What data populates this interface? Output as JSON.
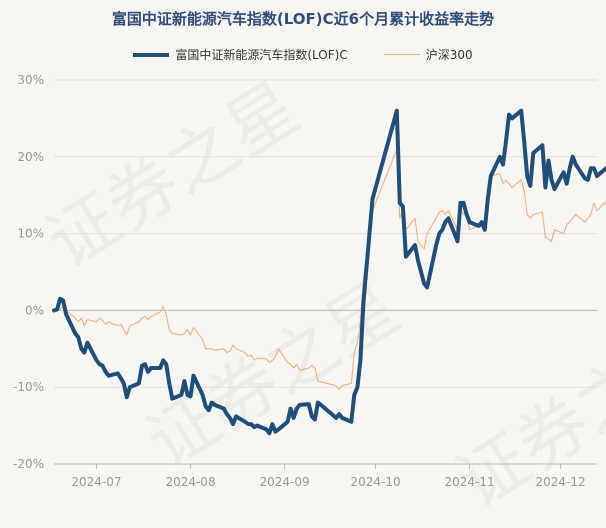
{
  "watermark": "证券之星",
  "chart_data": {
    "type": "line",
    "title": "富国中证新能源汽车指数(LOF)C近6个月累计收益率走势",
    "ylim": [
      -20,
      30
    ],
    "yticks": [
      30,
      20,
      10,
      0,
      -10,
      -20
    ],
    "ytick_labels": [
      "30%",
      "20%",
      "10%",
      "0%",
      "-10%",
      "-20%"
    ],
    "xlim": [
      "2024-06-17",
      "2024-12-13"
    ],
    "xticks": [
      "2024-07-01",
      "2024-08-01",
      "2024-09-01",
      "2024-10-01",
      "2024-11-01",
      "2024-12-01"
    ],
    "xtick_labels": [
      "2024-07",
      "2024-08",
      "2024-09",
      "2024-10",
      "2024-11",
      "2024-12"
    ],
    "grid": true,
    "legend_position": "top",
    "series": [
      {
        "name": "富国中证新能源汽车指数(LOF)C",
        "color": "#1f4e79",
        "points": [
          [
            "2024-06-17",
            0.0
          ],
          [
            "2024-06-18",
            0.1
          ],
          [
            "2024-06-19",
            1.5
          ],
          [
            "2024-06-20",
            1.3
          ],
          [
            "2024-06-21",
            -0.5
          ],
          [
            "2024-06-24",
            -3.0
          ],
          [
            "2024-06-25",
            -3.5
          ],
          [
            "2024-06-26",
            -5.0
          ],
          [
            "2024-06-27",
            -5.5
          ],
          [
            "2024-06-28",
            -4.2
          ],
          [
            "2024-07-01",
            -6.5
          ],
          [
            "2024-07-02",
            -7.0
          ],
          [
            "2024-07-03",
            -7.2
          ],
          [
            "2024-07-04",
            -8.0
          ],
          [
            "2024-07-05",
            -8.5
          ],
          [
            "2024-07-08",
            -8.2
          ],
          [
            "2024-07-09",
            -8.8
          ],
          [
            "2024-07-10",
            -9.5
          ],
          [
            "2024-07-11",
            -11.3
          ],
          [
            "2024-07-12",
            -10.0
          ],
          [
            "2024-07-15",
            -9.5
          ],
          [
            "2024-07-16",
            -7.2
          ],
          [
            "2024-07-17",
            -7.0
          ],
          [
            "2024-07-18",
            -8.0
          ],
          [
            "2024-07-19",
            -7.5
          ],
          [
            "2024-07-22",
            -7.5
          ],
          [
            "2024-07-23",
            -6.5
          ],
          [
            "2024-07-24",
            -7.0
          ],
          [
            "2024-07-25",
            -9.5
          ],
          [
            "2024-07-26",
            -11.5
          ],
          [
            "2024-07-29",
            -11.0
          ],
          [
            "2024-07-30",
            -9.2
          ],
          [
            "2024-07-31",
            -11.0
          ],
          [
            "2024-08-01",
            -11.2
          ],
          [
            "2024-08-02",
            -8.5
          ],
          [
            "2024-08-05",
            -11.0
          ],
          [
            "2024-08-06",
            -12.5
          ],
          [
            "2024-08-07",
            -13.0
          ],
          [
            "2024-08-08",
            -12.0
          ],
          [
            "2024-08-09",
            -12.3
          ],
          [
            "2024-08-12",
            -12.8
          ],
          [
            "2024-08-13",
            -13.5
          ],
          [
            "2024-08-14",
            -14.0
          ],
          [
            "2024-08-15",
            -14.8
          ],
          [
            "2024-08-16",
            -13.8
          ],
          [
            "2024-08-19",
            -14.5
          ],
          [
            "2024-08-20",
            -14.8
          ],
          [
            "2024-08-21",
            -14.8
          ],
          [
            "2024-08-22",
            -15.2
          ],
          [
            "2024-08-23",
            -15.0
          ],
          [
            "2024-08-26",
            -15.5
          ],
          [
            "2024-08-27",
            -16.0
          ],
          [
            "2024-08-28",
            -14.8
          ],
          [
            "2024-08-29",
            -15.8
          ],
          [
            "2024-08-30",
            -15.5
          ],
          [
            "2024-09-02",
            -14.5
          ],
          [
            "2024-09-03",
            -12.8
          ],
          [
            "2024-09-04",
            -14.0
          ],
          [
            "2024-09-05",
            -12.8
          ],
          [
            "2024-09-06",
            -12.3
          ],
          [
            "2024-09-09",
            -12.2
          ],
          [
            "2024-09-10",
            -13.8
          ],
          [
            "2024-09-11",
            -14.2
          ],
          [
            "2024-09-12",
            -12.0
          ],
          [
            "2024-09-13",
            -12.3
          ],
          [
            "2024-09-18",
            -14.0
          ],
          [
            "2024-09-19",
            -13.5
          ],
          [
            "2024-09-20",
            -14.0
          ],
          [
            "2024-09-23",
            -14.5
          ],
          [
            "2024-09-24",
            -11.0
          ],
          [
            "2024-09-25",
            -10.0
          ],
          [
            "2024-09-26",
            -6.5
          ],
          [
            "2024-09-27",
            1.0
          ],
          [
            "2024-09-30",
            14.5
          ],
          [
            "2024-10-08",
            26.0
          ],
          [
            "2024-10-09",
            14.0
          ],
          [
            "2024-10-10",
            13.5
          ],
          [
            "2024-10-11",
            7.0
          ],
          [
            "2024-10-14",
            8.5
          ],
          [
            "2024-10-15",
            6.5
          ],
          [
            "2024-10-16",
            5.0
          ],
          [
            "2024-10-17",
            3.5
          ],
          [
            "2024-10-18",
            3.0
          ],
          [
            "2024-10-21",
            8.5
          ],
          [
            "2024-10-22",
            10.0
          ],
          [
            "2024-10-23",
            10.5
          ],
          [
            "2024-10-24",
            11.5
          ],
          [
            "2024-10-25",
            12.0
          ],
          [
            "2024-10-28",
            9.0
          ],
          [
            "2024-10-29",
            14.0
          ],
          [
            "2024-10-30",
            14.0
          ],
          [
            "2024-10-31",
            12.5
          ],
          [
            "2024-11-01",
            11.5
          ],
          [
            "2024-11-04",
            11.0
          ],
          [
            "2024-11-05",
            11.5
          ],
          [
            "2024-11-06",
            10.5
          ],
          [
            "2024-11-07",
            14.5
          ],
          [
            "2024-11-08",
            17.5
          ],
          [
            "2024-11-11",
            20.0
          ],
          [
            "2024-11-12",
            19.0
          ],
          [
            "2024-11-13",
            22.0
          ],
          [
            "2024-11-14",
            25.5
          ],
          [
            "2024-11-15",
            25.0
          ],
          [
            "2024-11-18",
            26.0
          ],
          [
            "2024-11-19",
            22.0
          ],
          [
            "2024-11-20",
            17.5
          ],
          [
            "2024-11-21",
            16.2
          ],
          [
            "2024-11-22",
            20.5
          ],
          [
            "2024-11-25",
            21.5
          ],
          [
            "2024-11-26",
            16.0
          ],
          [
            "2024-11-27",
            19.5
          ],
          [
            "2024-11-28",
            17.0
          ],
          [
            "2024-11-29",
            15.8
          ],
          [
            "2024-12-02",
            18.0
          ],
          [
            "2024-12-03",
            16.5
          ],
          [
            "2024-12-04",
            18.5
          ],
          [
            "2024-12-05",
            20.0
          ],
          [
            "2024-12-06",
            19.0
          ],
          [
            "2024-12-09",
            17.2
          ],
          [
            "2024-12-10",
            17.0
          ],
          [
            "2024-12-11",
            18.5
          ],
          [
            "2024-12-12",
            18.5
          ],
          [
            "2024-12-13",
            17.5
          ],
          [
            "2024-12-16",
            18.5
          ],
          [
            "2024-12-17",
            18.5
          ]
        ]
      },
      {
        "name": "沪深300",
        "color": "#f1b27e",
        "points": [
          [
            "2024-06-17",
            0.0
          ],
          [
            "2024-06-18",
            0.2
          ],
          [
            "2024-06-19",
            0.2
          ],
          [
            "2024-06-20",
            0.5
          ],
          [
            "2024-06-21",
            0.0
          ],
          [
            "2024-06-24",
            -1.0
          ],
          [
            "2024-06-25",
            -1.5
          ],
          [
            "2024-06-26",
            -1.0
          ],
          [
            "2024-06-27",
            -2.0
          ],
          [
            "2024-06-28",
            -1.2
          ],
          [
            "2024-07-01",
            -1.5
          ],
          [
            "2024-07-02",
            -1.0
          ],
          [
            "2024-07-03",
            -1.3
          ],
          [
            "2024-07-04",
            -1.8
          ],
          [
            "2024-07-05",
            -1.5
          ],
          [
            "2024-07-08",
            -2.0
          ],
          [
            "2024-07-09",
            -1.8
          ],
          [
            "2024-07-10",
            -2.5
          ],
          [
            "2024-07-11",
            -3.2
          ],
          [
            "2024-07-12",
            -2.0
          ],
          [
            "2024-07-15",
            -1.5
          ],
          [
            "2024-07-16",
            -1.0
          ],
          [
            "2024-07-17",
            -0.8
          ],
          [
            "2024-07-18",
            -1.2
          ],
          [
            "2024-07-19",
            -0.8
          ],
          [
            "2024-07-22",
            -0.2
          ],
          [
            "2024-07-23",
            0.5
          ],
          [
            "2024-07-24",
            -0.5
          ],
          [
            "2024-07-25",
            -2.5
          ],
          [
            "2024-07-26",
            -3.0
          ],
          [
            "2024-07-29",
            -3.2
          ],
          [
            "2024-07-30",
            -3.0
          ],
          [
            "2024-07-31",
            -2.5
          ],
          [
            "2024-08-01",
            -3.2
          ],
          [
            "2024-08-02",
            -2.2
          ],
          [
            "2024-08-05",
            -3.8
          ],
          [
            "2024-08-06",
            -5.0
          ],
          [
            "2024-08-07",
            -5.0
          ],
          [
            "2024-08-08",
            -5.0
          ],
          [
            "2024-08-09",
            -5.2
          ],
          [
            "2024-08-12",
            -5.0
          ],
          [
            "2024-08-13",
            -5.5
          ],
          [
            "2024-08-14",
            -5.3
          ],
          [
            "2024-08-15",
            -4.5
          ],
          [
            "2024-08-16",
            -5.0
          ],
          [
            "2024-08-19",
            -5.5
          ],
          [
            "2024-08-20",
            -6.0
          ],
          [
            "2024-08-21",
            -5.8
          ],
          [
            "2024-08-22",
            -6.5
          ],
          [
            "2024-08-23",
            -6.2
          ],
          [
            "2024-08-26",
            -6.3
          ],
          [
            "2024-08-27",
            -6.8
          ],
          [
            "2024-08-28",
            -6.5
          ],
          [
            "2024-08-29",
            -6.0
          ],
          [
            "2024-08-30",
            -5.0
          ],
          [
            "2024-09-02",
            -6.8
          ],
          [
            "2024-09-03",
            -7.0
          ],
          [
            "2024-09-04",
            -7.5
          ],
          [
            "2024-09-05",
            -7.0
          ],
          [
            "2024-09-06",
            -7.8
          ],
          [
            "2024-09-09",
            -7.5
          ],
          [
            "2024-09-10",
            -7.2
          ],
          [
            "2024-09-11",
            -7.5
          ],
          [
            "2024-09-12",
            -9.2
          ],
          [
            "2024-09-13",
            -9.3
          ],
          [
            "2024-09-18",
            -9.8
          ],
          [
            "2024-09-19",
            -10.3
          ],
          [
            "2024-09-20",
            -9.8
          ],
          [
            "2024-09-23",
            -9.5
          ],
          [
            "2024-09-24",
            -5.5
          ],
          [
            "2024-09-25",
            -4.2
          ],
          [
            "2024-09-26",
            -1.5
          ],
          [
            "2024-09-27",
            4.0
          ],
          [
            "2024-09-30",
            13.0
          ],
          [
            "2024-10-08",
            21.0
          ],
          [
            "2024-10-09",
            12.0
          ],
          [
            "2024-10-10",
            13.0
          ],
          [
            "2024-10-11",
            10.5
          ],
          [
            "2024-10-14",
            12.0
          ],
          [
            "2024-10-15",
            9.0
          ],
          [
            "2024-10-16",
            8.5
          ],
          [
            "2024-10-17",
            8.0
          ],
          [
            "2024-10-18",
            10.0
          ],
          [
            "2024-10-21",
            12.0
          ],
          [
            "2024-10-22",
            12.8
          ],
          [
            "2024-10-23",
            13.0
          ],
          [
            "2024-10-24",
            12.5
          ],
          [
            "2024-10-25",
            13.0
          ],
          [
            "2024-10-28",
            10.5
          ],
          [
            "2024-10-29",
            13.2
          ],
          [
            "2024-10-30",
            12.5
          ],
          [
            "2024-10-31",
            12.3
          ],
          [
            "2024-11-01",
            10.5
          ],
          [
            "2024-11-04",
            11.0
          ],
          [
            "2024-11-05",
            11.5
          ],
          [
            "2024-11-06",
            10.5
          ],
          [
            "2024-11-07",
            15.0
          ],
          [
            "2024-11-08",
            17.5
          ],
          [
            "2024-11-11",
            17.8
          ],
          [
            "2024-11-12",
            16.5
          ],
          [
            "2024-11-13",
            17.0
          ],
          [
            "2024-11-14",
            16.5
          ],
          [
            "2024-11-15",
            16.0
          ],
          [
            "2024-11-18",
            17.0
          ],
          [
            "2024-11-19",
            15.5
          ],
          [
            "2024-11-20",
            12.5
          ],
          [
            "2024-11-21",
            12.0
          ],
          [
            "2024-11-22",
            12.5
          ],
          [
            "2024-11-25",
            12.8
          ],
          [
            "2024-11-26",
            9.5
          ],
          [
            "2024-11-27",
            9.3
          ],
          [
            "2024-11-28",
            9.0
          ],
          [
            "2024-11-29",
            10.5
          ],
          [
            "2024-12-02",
            10.0
          ],
          [
            "2024-12-03",
            11.2
          ],
          [
            "2024-12-04",
            11.5
          ],
          [
            "2024-12-05",
            12.0
          ],
          [
            "2024-12-06",
            12.5
          ],
          [
            "2024-12-09",
            11.5
          ],
          [
            "2024-12-10",
            12.0
          ],
          [
            "2024-12-11",
            12.5
          ],
          [
            "2024-12-12",
            14.0
          ],
          [
            "2024-12-13",
            13.0
          ],
          [
            "2024-12-16",
            14.2
          ],
          [
            "2024-12-17",
            11.5
          ]
        ]
      }
    ]
  }
}
